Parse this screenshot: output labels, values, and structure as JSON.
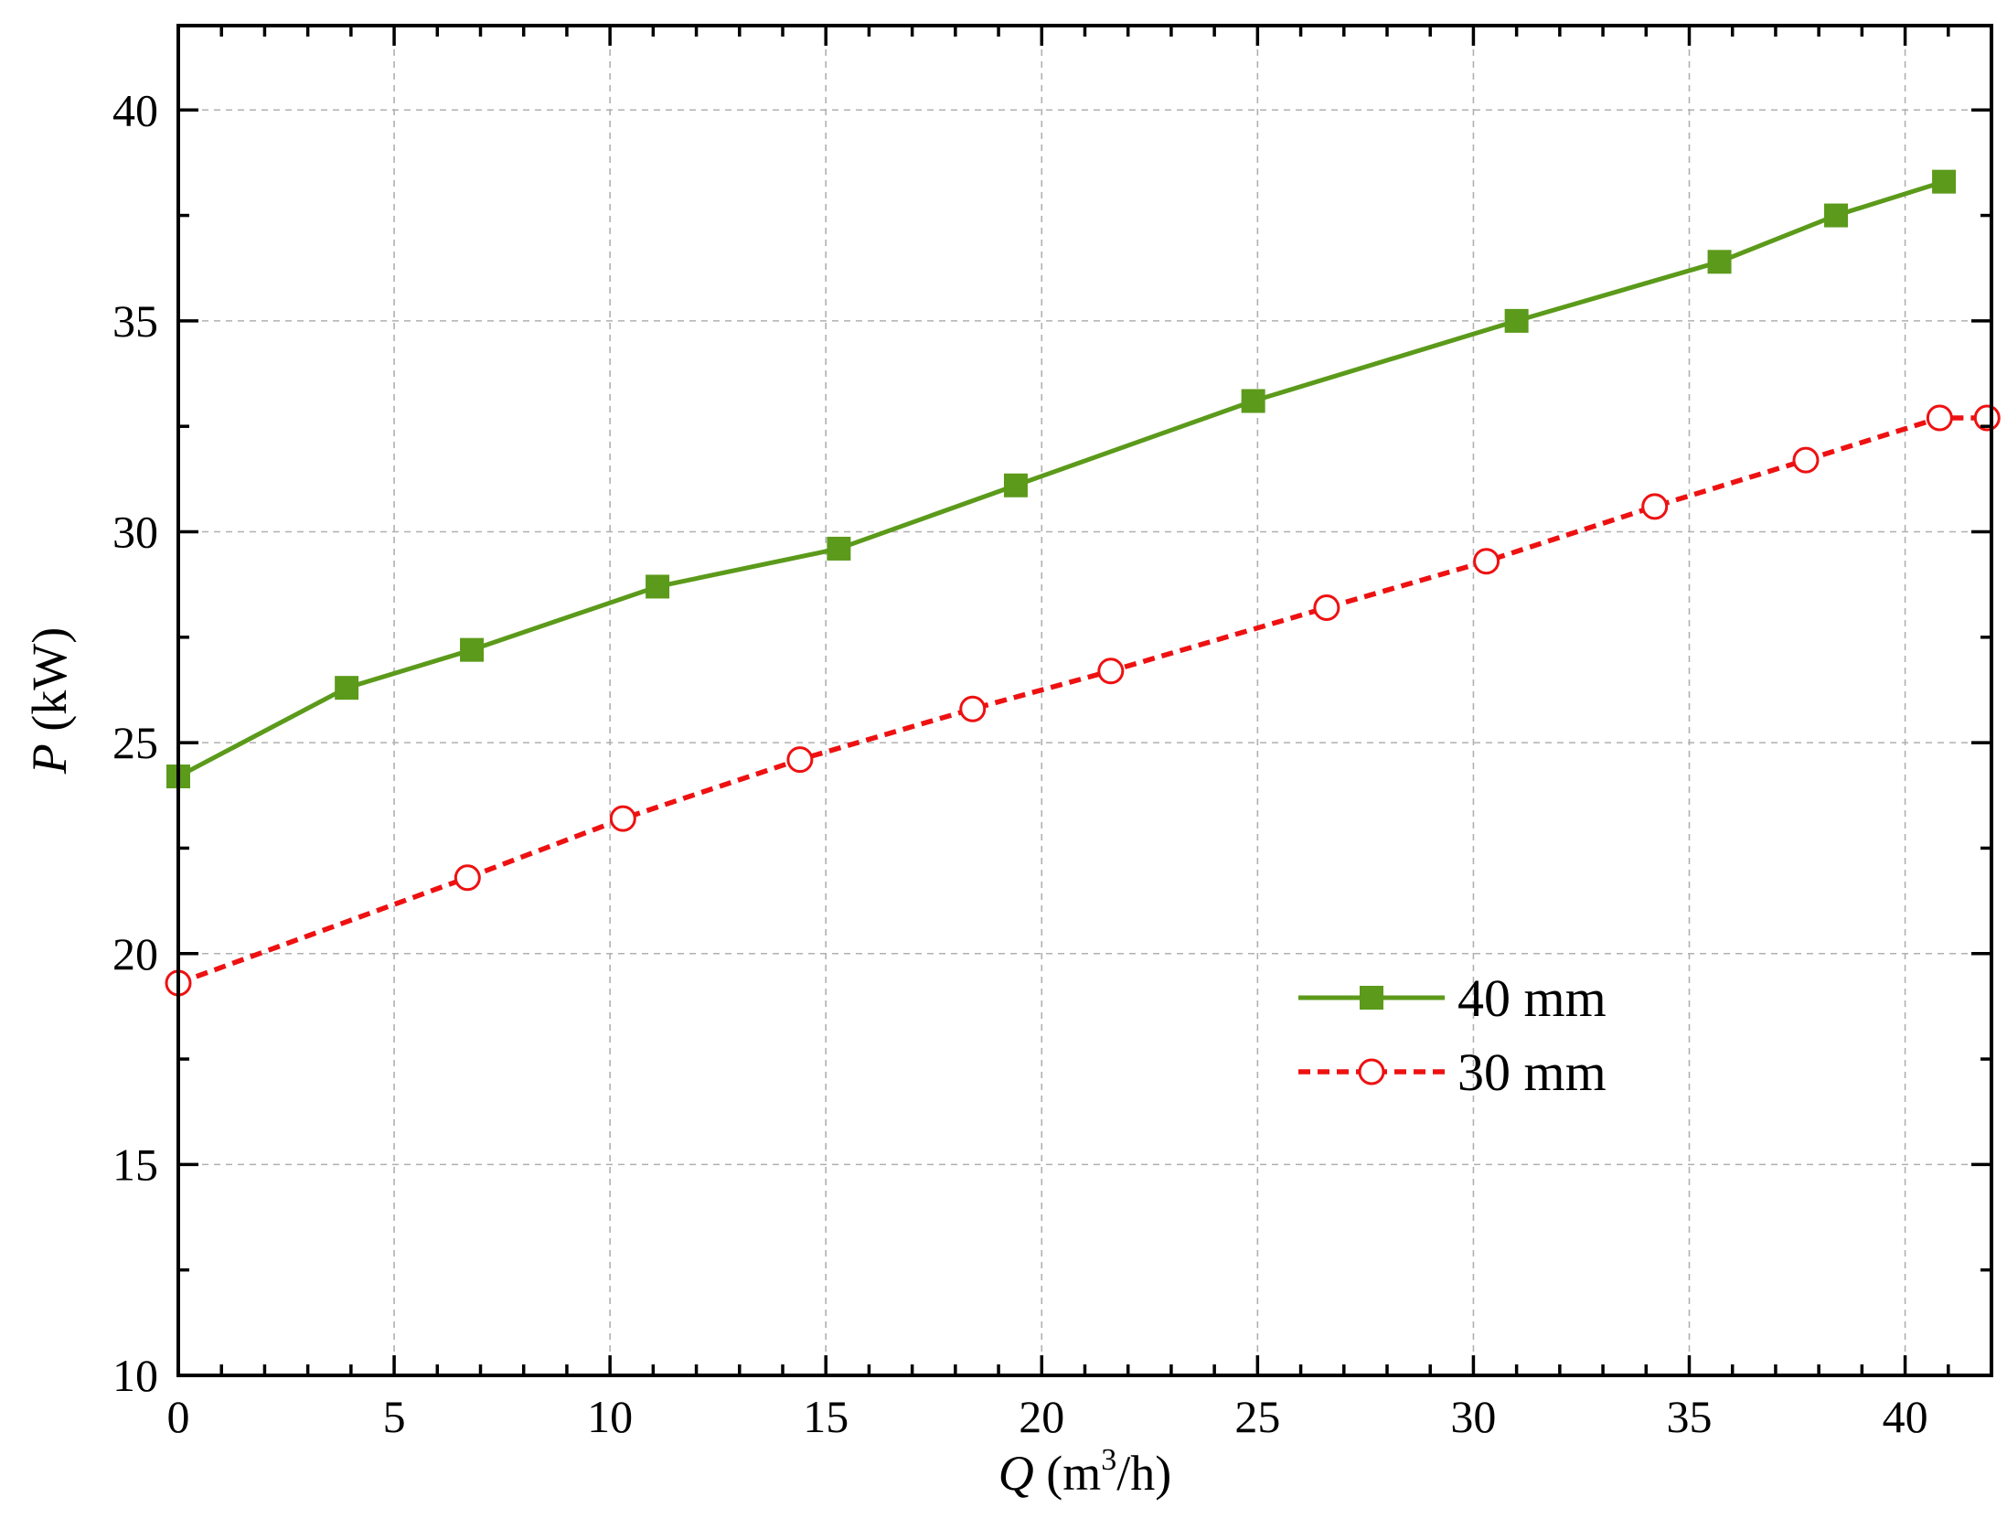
{
  "chart_data": {
    "type": "line",
    "xlabel_italic": "Q",
    "xlabel_rest": " (m",
    "xlabel_sup": "3",
    "xlabel_end": "/h)",
    "ylabel_italic": "P",
    "ylabel_rest": " (kW)",
    "xlim": [
      0,
      42
    ],
    "ylim": [
      10,
      42
    ],
    "xticks": [
      0,
      5,
      10,
      15,
      20,
      25,
      30,
      35,
      40
    ],
    "xticks_minor_step": 1,
    "yticks": [
      10,
      15,
      20,
      25,
      30,
      35,
      40
    ],
    "yticks_minor_step": 2.5,
    "grid": true,
    "legend_position": "lower-right",
    "series": [
      {
        "name": "40 mm",
        "color": "#5b9a1a",
        "line_style": "solid",
        "marker": "filled-square",
        "x": [
          0,
          3.9,
          6.8,
          11.1,
          15.3,
          19.4,
          24.9,
          31.0,
          35.7,
          38.4,
          40.9
        ],
        "y": [
          24.2,
          26.3,
          27.2,
          28.7,
          29.6,
          31.1,
          33.1,
          35.0,
          36.4,
          37.5,
          38.3
        ]
      },
      {
        "name": "30 mm",
        "color": "#ee1111",
        "line_style": "dashed",
        "marker": "open-circle",
        "x": [
          0,
          6.7,
          10.3,
          14.4,
          18.4,
          21.6,
          26.6,
          30.3,
          34.2,
          37.7,
          40.8,
          41.9
        ],
        "y": [
          19.3,
          21.8,
          23.2,
          24.6,
          25.8,
          26.7,
          28.2,
          29.3,
          30.6,
          31.7,
          32.7,
          32.7
        ]
      }
    ]
  }
}
